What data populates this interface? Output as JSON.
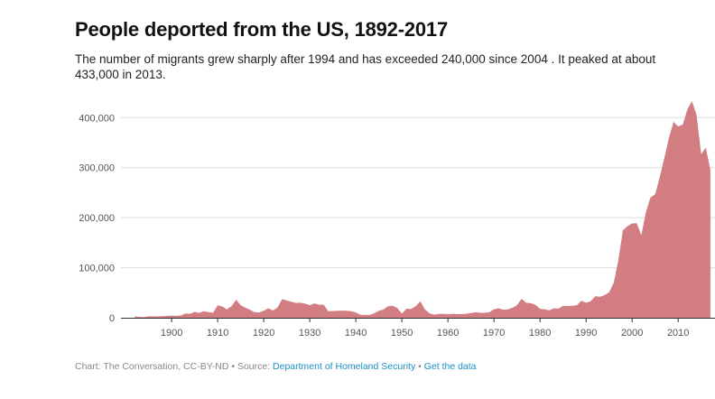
{
  "title": "People deported from the US, 1892-2017",
  "subtitle": "The number of migrants grew sharply after 1994 and has exceeded 240,000 since 2004 . It peaked at about 433,000 in 2013.",
  "footer": {
    "credit": "Chart: The Conversation, CC-BY-ND",
    "separator": "•",
    "source_label": "Source:",
    "source_link": "Department of Homeland Security",
    "data_link": "Get the data"
  },
  "colors": {
    "area": "#d17d82",
    "grid": "#dddddd",
    "axis": "#333333",
    "tick_text": "#555555"
  },
  "chart_data": {
    "type": "area",
    "title": "People deported from the US, 1892-2017",
    "xlabel": "",
    "ylabel": "",
    "xlim": [
      1889,
      2018
    ],
    "ylim": [
      0,
      433000
    ],
    "grid": true,
    "x_ticks": [
      "1900",
      "1910",
      "1920",
      "1930",
      "1940",
      "1950",
      "1960",
      "1970",
      "1980",
      "1990",
      "2000",
      "2010"
    ],
    "y_ticks": [
      "0",
      "100,000",
      "200,000",
      "300,000",
      "400,000"
    ],
    "x": [
      1892,
      1893,
      1894,
      1895,
      1896,
      1897,
      1898,
      1899,
      1900,
      1901,
      1902,
      1903,
      1904,
      1905,
      1906,
      1907,
      1908,
      1909,
      1910,
      1911,
      1912,
      1913,
      1914,
      1915,
      1916,
      1917,
      1918,
      1919,
      1920,
      1921,
      1922,
      1923,
      1924,
      1925,
      1926,
      1927,
      1928,
      1929,
      1930,
      1931,
      1932,
      1933,
      1934,
      1935,
      1936,
      1937,
      1938,
      1939,
      1940,
      1941,
      1942,
      1943,
      1944,
      1945,
      1946,
      1947,
      1948,
      1949,
      1950,
      1951,
      1952,
      1953,
      1954,
      1955,
      1956,
      1957,
      1958,
      1959,
      1960,
      1961,
      1962,
      1963,
      1964,
      1965,
      1966,
      1967,
      1968,
      1969,
      1970,
      1971,
      1972,
      1973,
      1974,
      1975,
      1976,
      1977,
      1978,
      1979,
      1980,
      1981,
      1982,
      1983,
      1984,
      1985,
      1986,
      1987,
      1988,
      1989,
      1990,
      1991,
      1992,
      1993,
      1994,
      1995,
      1996,
      1997,
      1998,
      1999,
      2000,
      2001,
      2002,
      2003,
      2004,
      2005,
      2006,
      2007,
      2008,
      2009,
      2010,
      2011,
      2012,
      2013,
      2014,
      2015,
      2016,
      2017
    ],
    "values": [
      2800,
      1600,
      1400,
      2600,
      2800,
      3000,
      3200,
      3800,
      4200,
      3900,
      4600,
      8500,
      8000,
      11800,
      9600,
      13000,
      11200,
      10000,
      25000,
      22500,
      17000,
      23000,
      36000,
      25000,
      20000,
      16000,
      11000,
      10500,
      14000,
      19000,
      14500,
      20500,
      37500,
      34500,
      32000,
      29600,
      30000,
      28200,
      25000,
      28600,
      26000,
      26200,
      13000,
      13500,
      14000,
      14300,
      14000,
      13000,
      10500,
      6000,
      5600,
      5800,
      9100,
      14000,
      16500,
      23000,
      24000,
      19500,
      8400,
      18000,
      17700,
      23000,
      33000,
      17000,
      9000,
      6000,
      7600,
      7900,
      7200,
      8000,
      7500,
      7400,
      8000,
      9500,
      11000,
      10000,
      10000,
      11000,
      17000,
      19000,
      16000,
      16500,
      20000,
      25000,
      38000,
      30000,
      29000,
      26000,
      18000,
      17000,
      15000,
      19000,
      18000,
      24000,
      23500,
      24000,
      25000,
      34000,
      30000,
      33000,
      43000,
      42000,
      45000,
      50800,
      69600,
      114400,
      174800,
      183100,
      188500,
      189000,
      165100,
      211100,
      240700,
      246400,
      280900,
      319400,
      359800,
      391400,
      382300,
      386000,
      416300,
      433000,
      405100,
      326900,
      340100,
      295400
    ]
  }
}
